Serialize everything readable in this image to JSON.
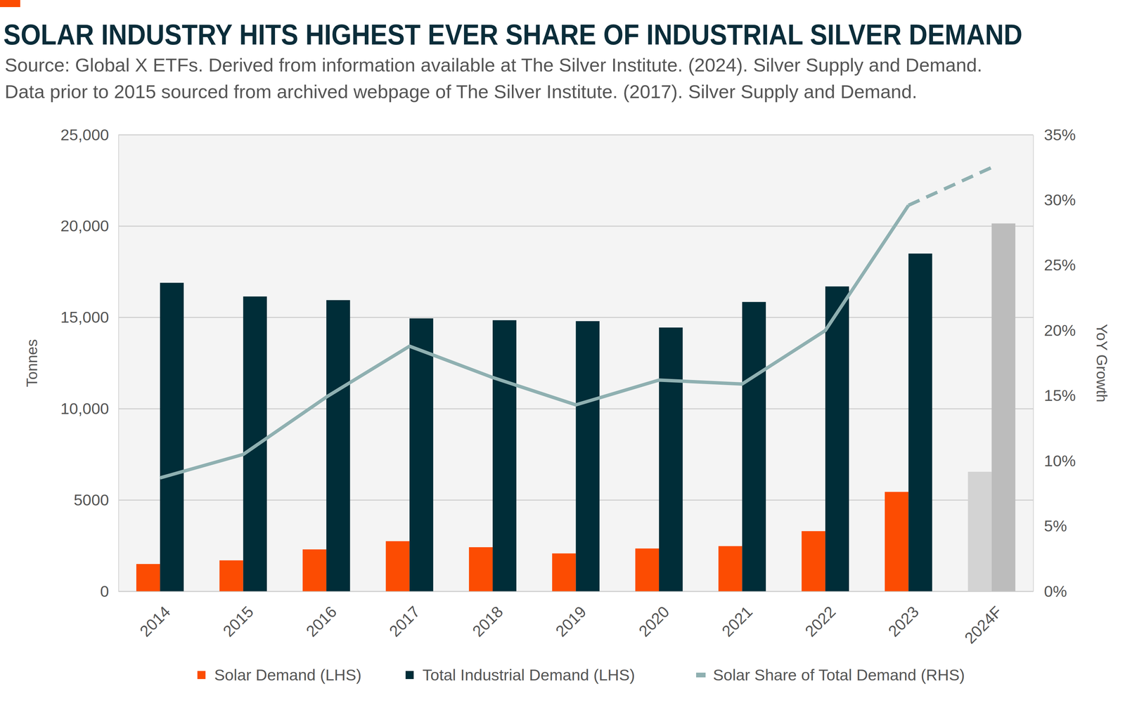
{
  "chart_data": {
    "type": "bar",
    "title": "SOLAR INDUSTRY HITS HIGHEST EVER SHARE OF INDUSTRIAL SILVER DEMAND",
    "subtitle": [
      "Source: Global X ETFs. Derived from information available at The Silver Institute. (2024). Silver Supply and Demand.",
      "Data prior to 2015 sourced from archived webpage of The Silver Institute. (2017). Silver Supply and Demand."
    ],
    "ylabel": "Tonnes",
    "y2label": "YoY Growth",
    "categories": [
      "2014",
      "2015",
      "2016",
      "2017",
      "2018",
      "2019",
      "2020",
      "2021",
      "2022",
      "2023",
      "2024F"
    ],
    "series": [
      {
        "name": "Solar Demand (LHS)",
        "type": "bar",
        "color": "#fc4c02",
        "colors": [
          "#fc4c02",
          "#fc4c02",
          "#fc4c02",
          "#fc4c02",
          "#fc4c02",
          "#fc4c02",
          "#fc4c02",
          "#fc4c02",
          "#fc4c02",
          "#fc4c02",
          "#d3d3d3"
        ],
        "values": [
          1500,
          1700,
          2300,
          2750,
          2420,
          2080,
          2350,
          2480,
          3300,
          5450,
          6550
        ]
      },
      {
        "name": "Total Industrial Demand (LHS)",
        "type": "bar",
        "color": "#002d38",
        "colors": [
          "#002d38",
          "#002d38",
          "#002d38",
          "#002d38",
          "#002d38",
          "#002d38",
          "#002d38",
          "#002d38",
          "#002d38",
          "#002d38",
          "#bcbcbc"
        ],
        "values": [
          16900,
          16150,
          15950,
          14950,
          14850,
          14800,
          14450,
          15850,
          16700,
          18500,
          20150
        ]
      },
      {
        "name": "Solar Share of Total Demand (RHS)",
        "type": "line",
        "axis": "y2",
        "color": "#8fb0b1",
        "line_style": "solid",
        "values": [
          8.7,
          10.5,
          14.9,
          18.8,
          16.4,
          14.3,
          16.2,
          15.9,
          20.0,
          29.6,
          null
        ]
      },
      {
        "type": "line",
        "axis": "y2",
        "color": "#8fb0b1",
        "line_style": "dashed",
        "values": [
          null,
          null,
          null,
          null,
          null,
          null,
          null,
          null,
          null,
          29.6,
          32.5
        ]
      }
    ],
    "ylim": [
      0,
      25000
    ],
    "yticks": [
      0,
      5000,
      {
        "value": 10000,
        "label": "10,000"
      },
      {
        "value": 15000,
        "label": "15,000"
      },
      {
        "value": 20000,
        "label": "20,000"
      },
      {
        "value": 25000,
        "label": "25,000"
      }
    ],
    "y2lim": [
      0,
      35
    ],
    "y2ticks": [
      {
        "value": 0,
        "label": "0%"
      },
      {
        "value": 5,
        "label": "5%"
      },
      {
        "value": 10,
        "label": "10%"
      },
      {
        "value": 15,
        "label": "15%"
      },
      {
        "value": 20,
        "label": "20%"
      },
      {
        "value": 25,
        "label": "25%"
      },
      {
        "value": 30,
        "label": "30%"
      },
      {
        "value": 35,
        "label": "35%"
      }
    ],
    "grid": true,
    "legend": "bottom"
  }
}
